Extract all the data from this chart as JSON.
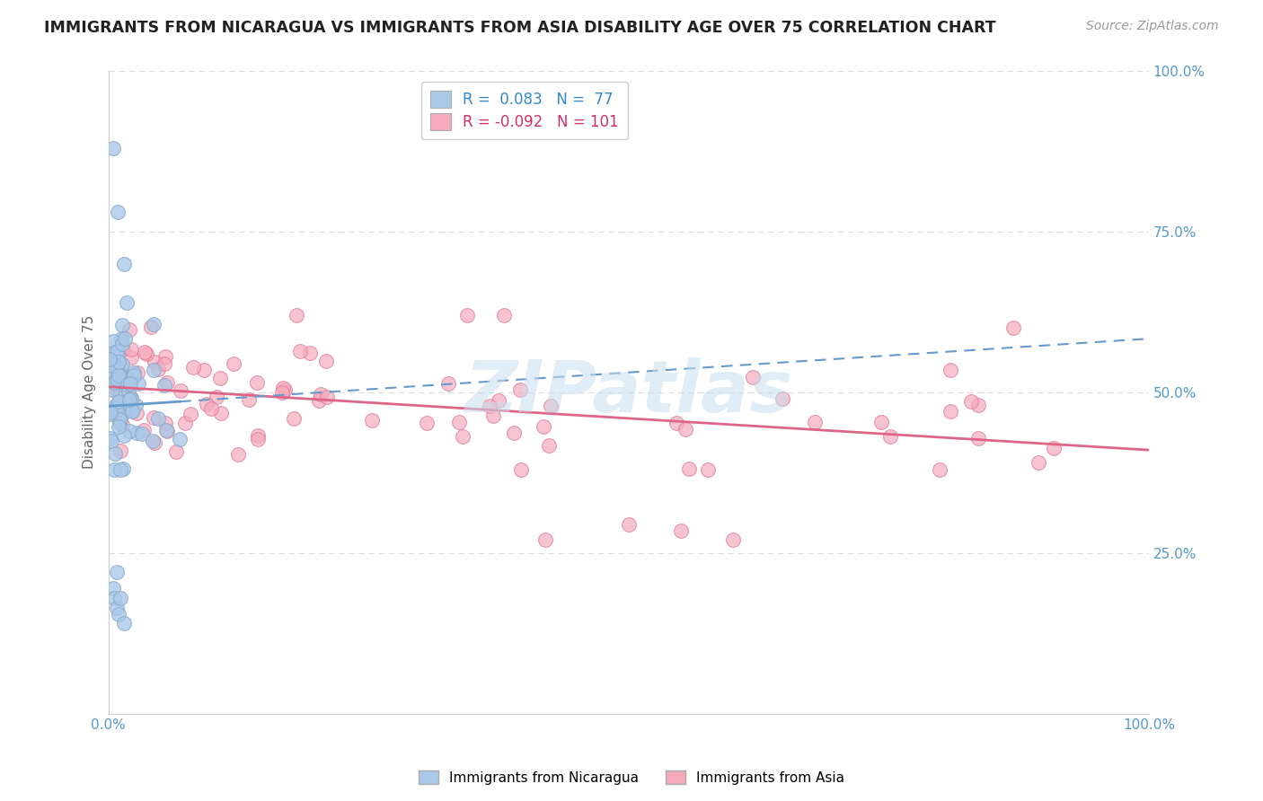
{
  "title": "IMMIGRANTS FROM NICARAGUA VS IMMIGRANTS FROM ASIA DISABILITY AGE OVER 75 CORRELATION CHART",
  "source": "Source: ZipAtlas.com",
  "ylabel": "Disability Age Over 75",
  "r_nicaragua": 0.083,
  "n_nicaragua": 77,
  "r_asia": -0.092,
  "n_asia": 101,
  "watermark_text": "ZIPatlas",
  "title_fontsize": 12.5,
  "source_fontsize": 10,
  "ylabel_fontsize": 11,
  "tick_fontsize": 11,
  "bg_color": "#ffffff",
  "grid_color": "#dddddd",
  "nicaragua_face": "#aac8e8",
  "nicaragua_edge": "#88aacc",
  "asia_face": "#f5aabb",
  "asia_edge": "#dd7799",
  "trendline_nicaragua_color": "#6699cc",
  "trendline_asia_color": "#dd6688",
  "tick_color": "#5599cc",
  "ylabel_color": "#666666",
  "legend_nic_color": "#3388cc",
  "legend_asia_color": "#cc3366"
}
